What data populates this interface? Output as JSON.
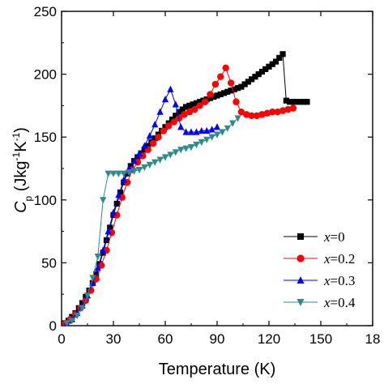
{
  "chart_data": {
    "type": "line",
    "xlabel": "Temperature (K)",
    "ylabel": "C_p (Jkg^-1K^-1)",
    "xlim": [
      0,
      180
    ],
    "ylim": [
      0,
      250
    ],
    "x_ticks": [
      "0",
      "30",
      "60",
      "90",
      "120",
      "150",
      "18"
    ],
    "y_ticks": [
      "0",
      "50",
      "100",
      "150",
      "200",
      "250"
    ],
    "grid": false,
    "legend_position": "bottom-right",
    "series": [
      {
        "name": "x=0",
        "var": "x",
        "val": "=0",
        "color": "#000000",
        "marker": "square",
        "x": [
          2,
          4,
          6,
          8,
          10,
          12,
          14,
          16,
          18,
          20,
          22,
          24,
          26,
          28,
          30,
          32,
          34,
          36,
          38,
          40,
          42,
          44,
          46,
          48,
          50,
          52,
          54,
          56,
          58,
          60,
          62,
          64,
          66,
          68,
          70,
          72,
          74,
          76,
          78,
          80,
          82,
          84,
          86,
          88,
          90,
          92,
          94,
          96,
          98,
          100,
          102,
          104,
          106,
          108,
          110,
          112,
          114,
          116,
          118,
          120,
          122,
          124,
          126,
          128,
          130,
          132,
          134,
          136,
          138,
          140,
          142
        ],
        "y": [
          2,
          4,
          7,
          10,
          14,
          18,
          23,
          28,
          34,
          41,
          49,
          58,
          68,
          78,
          88,
          97,
          106,
          114,
          121,
          127,
          131,
          134,
          137,
          140,
          143,
          146,
          149,
          152,
          155,
          158,
          161,
          164,
          167,
          170,
          172,
          174,
          175,
          176,
          177,
          178,
          179,
          180,
          181,
          182,
          183,
          184,
          185,
          186,
          187,
          188,
          189,
          190,
          192,
          194,
          196,
          198,
          200,
          202,
          204,
          206,
          208,
          210,
          213,
          216,
          179,
          178,
          178,
          178,
          178,
          178,
          178
        ]
      },
      {
        "name": "x=0.2",
        "var": "x",
        "val": "=0.2",
        "color": "#ff0000",
        "marker": "circle",
        "x": [
          2,
          5,
          8,
          11,
          14,
          17,
          20,
          23,
          26,
          29,
          32,
          35,
          38,
          41,
          44,
          47,
          50,
          53,
          56,
          59,
          62,
          65,
          68,
          71,
          74,
          77,
          80,
          83,
          86,
          89,
          92,
          95,
          98,
          101,
          104,
          107,
          110,
          113,
          116,
          119,
          122,
          125,
          128,
          131,
          134
        ],
        "y": [
          2,
          5,
          9,
          14,
          20,
          28,
          37,
          48,
          60,
          74,
          88,
          102,
          114,
          124,
          130,
          135,
          140,
          145,
          150,
          155,
          159,
          162,
          165,
          168,
          170,
          172,
          175,
          178,
          184,
          192,
          198,
          205,
          193,
          178,
          170,
          168,
          167,
          167,
          168,
          169,
          170,
          170,
          171,
          172,
          173
        ]
      },
      {
        "name": "x=0.3",
        "var": "x",
        "val": "=0.3",
        "color": "#0000ff",
        "marker": "triangle-up",
        "x": [
          3,
          6,
          9,
          12,
          15,
          18,
          21,
          24,
          27,
          30,
          33,
          36,
          39,
          42,
          45,
          48,
          51,
          54,
          57,
          60,
          63,
          66,
          69,
          72,
          75,
          78,
          81,
          84,
          87,
          90
        ],
        "y": [
          2,
          5,
          10,
          16,
          24,
          34,
          46,
          60,
          75,
          90,
          104,
          116,
          125,
          131,
          137,
          143,
          151,
          160,
          170,
          180,
          188,
          176,
          158,
          154,
          154,
          154,
          155,
          155,
          156,
          158
        ]
      },
      {
        "name": "x=0.4",
        "var": "x",
        "val": "=0.4",
        "color": "#2e8b8b",
        "marker": "triangle-down",
        "x": [
          3,
          6,
          9,
          12,
          15,
          18,
          21,
          24,
          27,
          30,
          33,
          36,
          39,
          42,
          45,
          48,
          51,
          54,
          57,
          60,
          63,
          66,
          69,
          72,
          75,
          78,
          81,
          84,
          87,
          90,
          93,
          96,
          99,
          102
        ],
        "y": [
          2,
          4,
          8,
          14,
          24,
          38,
          55,
          100,
          121,
          121,
          121,
          121,
          122,
          123,
          124,
          126,
          128,
          130,
          132,
          134,
          136,
          138,
          140,
          141,
          142,
          144,
          146,
          148,
          150,
          152,
          154,
          157,
          161,
          165
        ]
      }
    ]
  }
}
